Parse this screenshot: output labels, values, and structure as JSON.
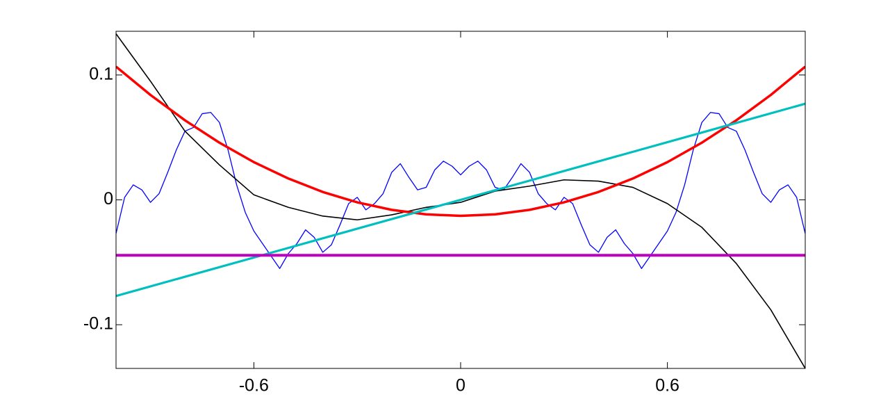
{
  "chart_data": {
    "type": "line",
    "xlim": [
      -1,
      1
    ],
    "ylim": [
      -0.135,
      0.135
    ],
    "xticks": [
      -0.6,
      0,
      0.6
    ],
    "yticks": [
      -0.1,
      0,
      0.1
    ],
    "box": true,
    "series": [
      {
        "color": "#0000ff",
        "width": 1.3,
        "x": [
          -1,
          -0.975,
          -0.95,
          -0.925,
          -0.9,
          -0.875,
          -0.85,
          -0.825,
          -0.8,
          -0.775,
          -0.75,
          -0.725,
          -0.7,
          -0.675,
          -0.65,
          -0.625,
          -0.6,
          -0.575,
          -0.55,
          -0.525,
          -0.5,
          -0.475,
          -0.45,
          -0.425,
          -0.4,
          -0.375,
          -0.35,
          -0.325,
          -0.3,
          -0.275,
          -0.25,
          -0.225,
          -0.2,
          -0.175,
          -0.15,
          -0.125,
          -0.1,
          -0.075,
          -0.05,
          -0.025,
          0,
          0.025,
          0.05,
          0.075,
          0.1,
          0.125,
          0.15,
          0.175,
          0.2,
          0.225,
          0.25,
          0.275,
          0.3,
          0.325,
          0.35,
          0.375,
          0.4,
          0.425,
          0.45,
          0.475,
          0.5,
          0.525,
          0.55,
          0.575,
          0.6,
          0.625,
          0.65,
          0.675,
          0.7,
          0.725,
          0.75,
          0.775,
          0.8,
          0.825,
          0.85,
          0.875,
          0.9,
          0.925,
          0.95,
          0.975,
          1
        ],
        "values": [
          -0.027,
          0.002,
          0.012,
          0.008,
          -0.002,
          0.005,
          0.022,
          0.04,
          0.055,
          0.058,
          0.069,
          0.07,
          0.062,
          0.04,
          0.012,
          -0.01,
          -0.025,
          -0.035,
          -0.045,
          -0.055,
          -0.043,
          -0.035,
          -0.024,
          -0.03,
          -0.042,
          -0.036,
          -0.02,
          -0.003,
          0.002,
          -0.008,
          -0.003,
          0.005,
          0.022,
          0.029,
          0.018,
          0.008,
          0.01,
          0.024,
          0.031,
          0.027,
          0.02,
          0.027,
          0.031,
          0.024,
          0.01,
          0.008,
          0.018,
          0.029,
          0.022,
          0.005,
          -0.003,
          -0.008,
          0.002,
          -0.003,
          -0.02,
          -0.036,
          -0.042,
          -0.03,
          -0.024,
          -0.035,
          -0.043,
          -0.055,
          -0.045,
          -0.035,
          -0.025,
          -0.01,
          0.012,
          0.04,
          0.062,
          0.07,
          0.069,
          0.058,
          0.055,
          0.04,
          0.022,
          0.005,
          -0.002,
          0.008,
          0.012,
          0.002,
          -0.027
        ]
      },
      {
        "color": "#000000",
        "width": 1.6,
        "x": [
          -1,
          -0.9,
          -0.8,
          -0.7,
          -0.6,
          -0.5,
          -0.4,
          -0.3,
          -0.2,
          -0.1,
          0,
          0.1,
          0.2,
          0.3,
          0.4,
          0.5,
          0.6,
          0.7,
          0.8,
          0.9,
          1
        ],
        "values": [
          0.133,
          0.095,
          0.055,
          0.028,
          0.004,
          -0.006,
          -0.013,
          -0.016,
          -0.012,
          -0.006,
          -0.002,
          0.007,
          0.011,
          0.016,
          0.015,
          0.01,
          -0.003,
          -0.022,
          -0.051,
          -0.088,
          -0.135
        ]
      },
      {
        "color": "#ff0000",
        "width": 3.5,
        "x": [
          -1,
          -0.9,
          -0.8,
          -0.7,
          -0.6,
          -0.5,
          -0.4,
          -0.3,
          -0.2,
          -0.1,
          0,
          0.1,
          0.2,
          0.3,
          0.4,
          0.5,
          0.6,
          0.7,
          0.8,
          0.9,
          1
        ],
        "values": [
          0.1067,
          0.084,
          0.0637,
          0.0458,
          0.0302,
          0.0171,
          0.0063,
          -0.002,
          -0.008,
          -0.0116,
          -0.0128,
          -0.0116,
          -0.008,
          -0.002,
          0.0063,
          0.0171,
          0.0302,
          0.0458,
          0.0637,
          0.084,
          0.1067
        ]
      },
      {
        "color": "#00bfbf",
        "width": 3.2,
        "x": [
          -1,
          1
        ],
        "values": [
          -0.077,
          0.077
        ]
      },
      {
        "color": "#bf00bf",
        "width": 4,
        "x": [
          -1,
          1
        ],
        "values": [
          -0.0444,
          -0.0444
        ]
      }
    ]
  }
}
